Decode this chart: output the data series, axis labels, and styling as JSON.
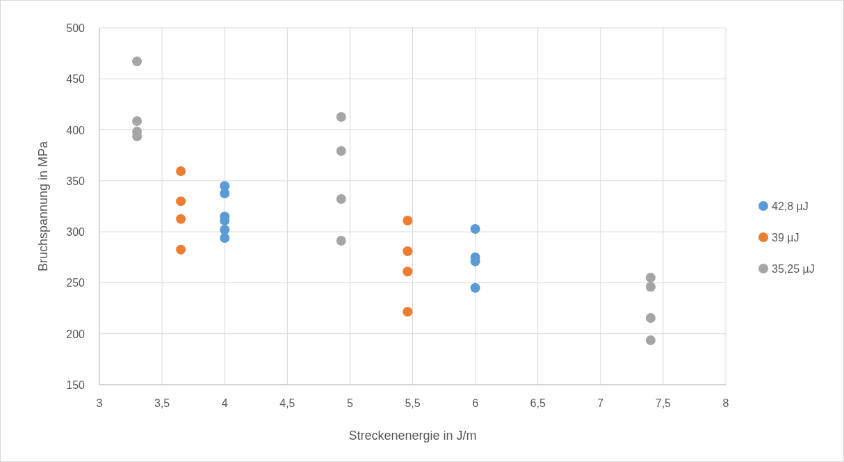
{
  "chart_data": {
    "type": "scatter",
    "xlabel": "Streckenenergie in J/m",
    "ylabel": "Bruchspannung in MPa",
    "xlim": [
      3,
      8
    ],
    "xticks": [
      3,
      {
        "value": 3.5,
        "label": "3,5"
      },
      4,
      {
        "value": 4.5,
        "label": "4,5"
      },
      5,
      {
        "value": 5.5,
        "label": "5,5"
      },
      6,
      {
        "value": 6.5,
        "label": "6,5"
      },
      7,
      {
        "value": 7.5,
        "label": "7,5"
      },
      8
    ],
    "ylim": [
      150,
      500
    ],
    "yticks": [
      150,
      200,
      250,
      300,
      350,
      400,
      450,
      500
    ],
    "grid": true,
    "legend": "right",
    "marker": "circle",
    "series": [
      {
        "name": "42,8 µJ",
        "color": "#5b9bd5",
        "x": [
          4,
          4,
          4,
          4,
          4,
          4,
          6,
          6,
          6,
          6
        ],
        "values": [
          345,
          337.6,
          315,
          311,
          302,
          294,
          302.8,
          275,
          271,
          245
        ]
      },
      {
        "name": "39 µJ",
        "color": "#ed7d31",
        "x": [
          3.65,
          3.65,
          3.65,
          3.65,
          5.46,
          5.46,
          5.46,
          5.46
        ],
        "values": [
          359.5,
          330,
          312.5,
          282.5,
          311,
          281,
          261,
          221.6
        ]
      },
      {
        "name": "35,25 µJ",
        "color": "#a5a5a5",
        "x": [
          3.3,
          3.3,
          3.3,
          3.3,
          4.93,
          4.93,
          4.93,
          4.93,
          7.4,
          7.4,
          7.4,
          7.4
        ],
        "values": [
          467,
          408.6,
          398.4,
          393.6,
          412.7,
          379.2,
          332.2,
          291.2,
          255,
          246,
          215.5,
          193.7
        ]
      }
    ]
  }
}
